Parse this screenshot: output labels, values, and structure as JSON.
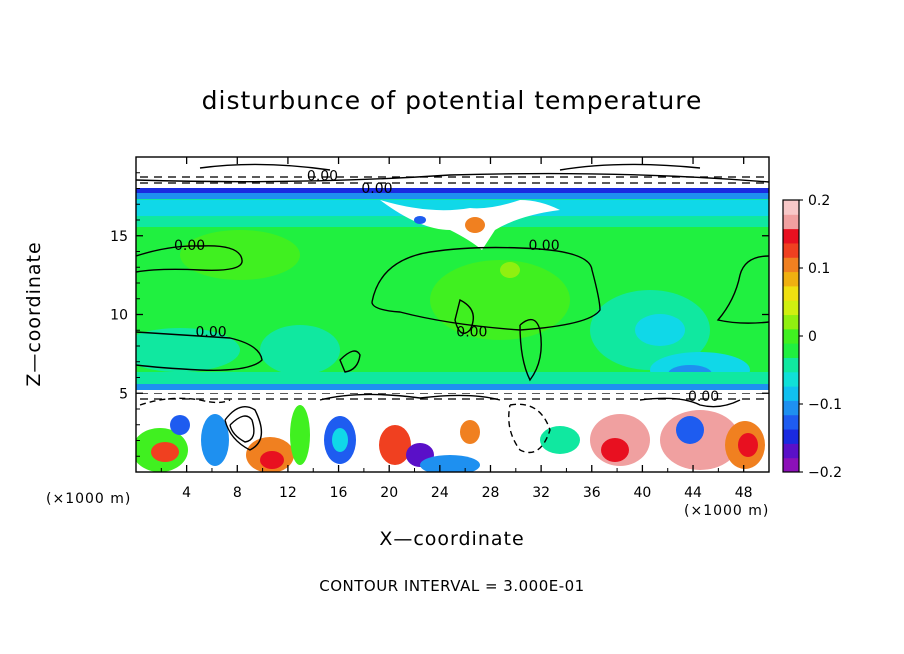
{
  "chart_data": {
    "type": "heatmap",
    "title": "disturbunce of potential temperature",
    "xlabel": "X—coordinate",
    "ylabel": "Z—coordinate",
    "x_unit": "(×1000 m)",
    "xlim": [
      0,
      50
    ],
    "ylim": [
      0,
      20
    ],
    "x_ticks": [
      4,
      8,
      12,
      16,
      20,
      24,
      28,
      32,
      36,
      40,
      44,
      48
    ],
    "y_ticks": [
      5,
      10,
      15
    ],
    "colorbar": {
      "range": [
        -0.2,
        0.2
      ],
      "ticks": [
        "0.2",
        "0.1",
        "0",
        "−0.1",
        "−0.2"
      ],
      "tick_values": [
        0.2,
        0.1,
        0,
        -0.1,
        -0.2
      ],
      "colors": [
        "#8c10b8",
        "#5a10c8",
        "#1a2ae0",
        "#1e5cf0",
        "#1e90f0",
        "#10c0f0",
        "#10e0d8",
        "#10e8a0",
        "#20f040",
        "#40f020",
        "#90f010",
        "#d0f010",
        "#f0e010",
        "#f0b010",
        "#f08020",
        "#f04020",
        "#e81020",
        "#f0a0a0",
        "#f8c8c8"
      ]
    },
    "contour_labels": [
      {
        "text": "0.00",
        "x": 13.5,
        "z": 18.5
      },
      {
        "text": "0.00",
        "x": 17.8,
        "z": 17.7
      },
      {
        "text": "0.00",
        "x": 3.0,
        "z": 14.1
      },
      {
        "text": "0.00",
        "x": 31.0,
        "z": 14.1
      },
      {
        "text": "0.00",
        "x": 4.7,
        "z": 8.6
      },
      {
        "text": "0.00",
        "x": 25.3,
        "z": 8.6
      },
      {
        "text": "0.00",
        "x": 43.6,
        "z": 4.5
      }
    ],
    "contour_interval": "CONTOUR INTERVAL = 3.000E-01"
  }
}
